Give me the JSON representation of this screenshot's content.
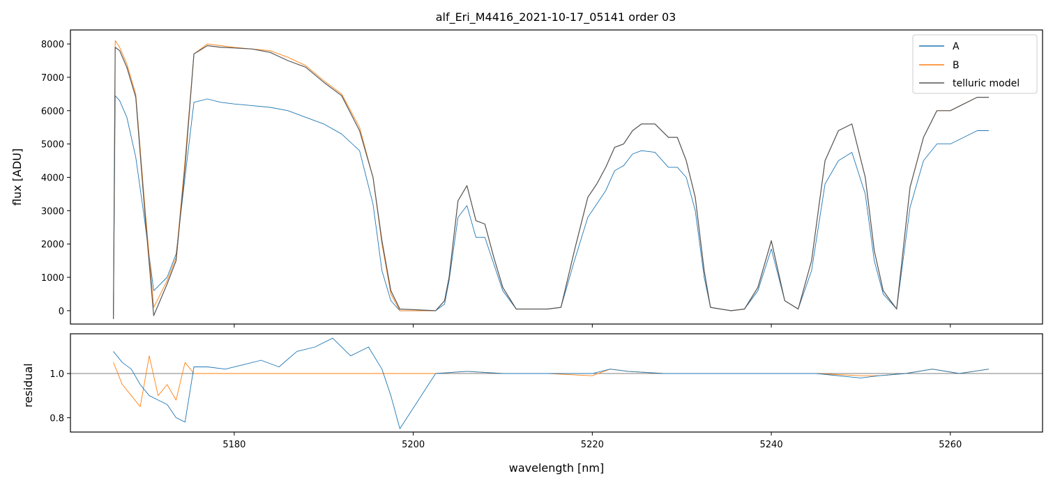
{
  "chart_data": [
    {
      "type": "line",
      "panel": "top",
      "title": "alf_Eri_M4416_2021-10-17_05141  order 03",
      "xlabel": "",
      "ylabel": "flux [ADU]",
      "xlim": [
        5161.7,
        5270.3
      ],
      "ylim": [
        -400,
        8420
      ],
      "yticks": [
        "0",
        "1000",
        "2000",
        "3000",
        "4000",
        "5000",
        "6000",
        "7000",
        "8000"
      ],
      "grid": false,
      "legend": "top-right",
      "colors": {
        "A": "#1f77b4",
        "B": "#ff7f0e",
        "model": "#555555"
      },
      "series": [
        {
          "name": "A",
          "x": [
            5166.5,
            5166.7,
            5167.2,
            5168.0,
            5169.0,
            5170.0,
            5171.0,
            5172.5,
            5173.5,
            5174.5,
            5175.5,
            5177.0,
            5178.5,
            5180.0,
            5182.0,
            5184.0,
            5186.0,
            5188.0,
            5190.0,
            5192.0,
            5194.0,
            5195.5,
            5196.5,
            5197.5,
            5198.5,
            5202.5,
            5203.5,
            5204.0,
            5205.0,
            5206.0,
            5207.0,
            5208.0,
            5209.0,
            5210.0,
            5211.5,
            5213.0,
            5215.0,
            5216.5,
            5218.0,
            5219.5,
            5220.5,
            5221.5,
            5222.5,
            5223.5,
            5224.5,
            5225.5,
            5227.0,
            5228.5,
            5229.5,
            5230.5,
            5231.5,
            5232.5,
            5233.2,
            5235.5,
            5237.0,
            5238.5,
            5240.0,
            5241.5,
            5243.0,
            5244.5,
            5246.0,
            5247.5,
            5249.0,
            5250.5,
            5251.5,
            5252.5,
            5254.0,
            5255.5,
            5257.0,
            5258.5,
            5260.0,
            5261.5,
            5263.0,
            5264.3
          ],
          "y": [
            -250,
            6450,
            6300,
            5800,
            4600,
            2700,
            600,
            1000,
            1700,
            4000,
            6250,
            6350,
            6250,
            6200,
            6150,
            6100,
            6000,
            5800,
            5600,
            5300,
            4800,
            3200,
            1200,
            300,
            0,
            0,
            200,
            900,
            2800,
            3150,
            2200,
            2200,
            1400,
            600,
            50,
            50,
            50,
            100,
            1500,
            2800,
            3200,
            3600,
            4200,
            4350,
            4700,
            4800,
            4750,
            4300,
            4300,
            4000,
            3000,
            1000,
            100,
            0,
            50,
            600,
            1850,
            300,
            50,
            1200,
            3800,
            4500,
            4750,
            3500,
            1500,
            500,
            50,
            3100,
            4500,
            5000,
            5000,
            5200,
            5400,
            5400
          ]
        },
        {
          "name": "B",
          "x": [
            5166.5,
            5166.7,
            5167.2,
            5168.0,
            5169.0,
            5170.0,
            5171.0,
            5172.5,
            5173.5,
            5174.5,
            5175.5,
            5177.0,
            5178.5,
            5180.0,
            5182.0,
            5184.0,
            5186.0,
            5188.0,
            5190.0,
            5192.0,
            5194.0,
            5195.5,
            5196.5,
            5197.5,
            5198.5,
            5202.5,
            5203.5,
            5204.0,
            5205.0,
            5206.0,
            5207.0,
            5208.0,
            5209.0,
            5210.0,
            5211.5,
            5213.0,
            5215.0,
            5216.5,
            5218.0,
            5219.5,
            5220.5,
            5221.5,
            5222.5,
            5223.5,
            5224.5,
            5225.5,
            5227.0,
            5228.5,
            5229.5,
            5230.5,
            5231.5,
            5232.5,
            5233.2,
            5235.5,
            5237.0,
            5238.5,
            5240.0,
            5241.5,
            5243.0,
            5244.5,
            5246.0,
            5247.5,
            5249.0,
            5250.5,
            5251.5,
            5252.5,
            5254.0,
            5255.5,
            5257.0,
            5258.5,
            5260.0,
            5261.5,
            5263.0,
            5264.3
          ],
          "y": [
            -250,
            8100,
            7900,
            7400,
            6500,
            3200,
            100,
            900,
            1600,
            4500,
            7700,
            8000,
            7950,
            7900,
            7850,
            7800,
            7600,
            7350,
            6900,
            6500,
            5500,
            4000,
            2000,
            500,
            0,
            0,
            300,
            1000,
            3300,
            3750,
            2700,
            2600,
            1600,
            700,
            50,
            50,
            50,
            100,
            1800,
            3400,
            3800,
            4300,
            4900,
            5000,
            5400,
            5600,
            5600,
            5200,
            5200,
            4500,
            3400,
            1200,
            100,
            0,
            50,
            700,
            2100,
            300,
            50,
            1500,
            4500,
            5400,
            5600,
            4000,
            1800,
            600,
            50,
            3700,
            5200,
            6000,
            6000,
            6200,
            6400,
            6400
          ]
        },
        {
          "name": "telluric model",
          "x": [
            5166.5,
            5166.7,
            5167.2,
            5168.0,
            5169.0,
            5170.0,
            5171.0,
            5172.5,
            5173.5,
            5174.5,
            5175.5,
            5177.0,
            5178.5,
            5180.0,
            5182.0,
            5184.0,
            5186.0,
            5188.0,
            5190.0,
            5192.0,
            5194.0,
            5195.5,
            5196.5,
            5197.5,
            5198.5,
            5202.5,
            5203.5,
            5204.0,
            5205.0,
            5206.0,
            5207.0,
            5208.0,
            5209.0,
            5210.0,
            5211.5,
            5213.0,
            5215.0,
            5216.5,
            5218.0,
            5219.5,
            5220.5,
            5221.5,
            5222.5,
            5223.5,
            5224.5,
            5225.5,
            5227.0,
            5228.5,
            5229.5,
            5230.5,
            5231.5,
            5232.5,
            5233.2,
            5235.5,
            5237.0,
            5238.5,
            5240.0,
            5241.5,
            5243.0,
            5244.5,
            5246.0,
            5247.5,
            5249.0,
            5250.5,
            5251.5,
            5252.5,
            5254.0,
            5255.5,
            5257.0,
            5258.5,
            5260.0,
            5261.5,
            5263.0,
            5264.3
          ],
          "y": [
            -250,
            7900,
            7800,
            7300,
            6400,
            3000,
            -150,
            800,
            1500,
            4300,
            7700,
            7950,
            7900,
            7880,
            7850,
            7750,
            7500,
            7300,
            6850,
            6450,
            5400,
            4000,
            2100,
            600,
            50,
            0,
            300,
            1000,
            3300,
            3750,
            2700,
            2600,
            1600,
            700,
            50,
            50,
            50,
            100,
            1800,
            3400,
            3800,
            4300,
            4900,
            5000,
            5400,
            5600,
            5600,
            5200,
            5200,
            4500,
            3400,
            1200,
            100,
            0,
            50,
            700,
            2100,
            300,
            50,
            1500,
            4500,
            5400,
            5600,
            4000,
            1800,
            600,
            50,
            3700,
            5200,
            6000,
            6000,
            6200,
            6400,
            6400
          ]
        }
      ]
    },
    {
      "type": "line",
      "panel": "bottom",
      "title": "",
      "xlabel": "wavelength [nm]",
      "ylabel": "residual",
      "xlim": [
        5161.7,
        5270.3
      ],
      "ylim": [
        0.735,
        1.18
      ],
      "xticks": [
        "5180",
        "5200",
        "5220",
        "5240",
        "5260"
      ],
      "yticks": [
        "0.8",
        "1.0"
      ],
      "reference_line": 1.0,
      "grid": false,
      "series": [
        {
          "name": "A",
          "x": [
            5166.5,
            5167.5,
            5168.5,
            5169.5,
            5170.5,
            5171.5,
            5172.5,
            5173.5,
            5174.5,
            5175.5,
            5177.0,
            5179.0,
            5181.0,
            5183.0,
            5185.0,
            5187.0,
            5189.0,
            5191.0,
            5193.0,
            5195.0,
            5196.5,
            5197.5,
            5198.5,
            5202.5,
            5206.0,
            5210.0,
            5215.0,
            5220.0,
            5222.0,
            5224.0,
            5228.0,
            5233.0,
            5235.5,
            5240.0,
            5245.0,
            5250.0,
            5252.0,
            5255.0,
            5258.0,
            5261.0,
            5264.3
          ],
          "y": [
            1.1,
            1.05,
            1.02,
            0.95,
            0.9,
            0.88,
            0.86,
            0.8,
            0.78,
            1.03,
            1.03,
            1.02,
            1.04,
            1.06,
            1.03,
            1.1,
            1.12,
            1.16,
            1.08,
            1.12,
            1.02,
            0.9,
            0.75,
            1.0,
            1.01,
            1.0,
            1.0,
            1.0,
            1.02,
            1.01,
            1.0,
            1.0,
            1.0,
            1.0,
            1.0,
            0.98,
            0.99,
            1.0,
            1.02,
            1.0,
            1.02
          ]
        },
        {
          "name": "B",
          "x": [
            5166.5,
            5167.5,
            5168.5,
            5169.5,
            5170.5,
            5171.5,
            5172.5,
            5173.5,
            5174.5,
            5175.5,
            5177.0,
            5179.0,
            5181.0,
            5183.0,
            5185.0,
            5187.0,
            5189.0,
            5191.0,
            5193.0,
            5195.0,
            5196.5,
            5197.5,
            5198.5,
            5202.5,
            5206.0,
            5210.0,
            5215.0,
            5220.0,
            5222.0,
            5224.0,
            5228.0,
            5233.0,
            5235.5,
            5240.0,
            5245.0,
            5250.0,
            5252.0,
            5255.0,
            5258.0,
            5261.0,
            5264.3
          ],
          "y": [
            1.05,
            0.95,
            0.9,
            0.85,
            1.08,
            0.9,
            0.95,
            0.88,
            1.05,
            1.0,
            1.0,
            1.0,
            1.0,
            1.0,
            1.0,
            1.0,
            1.0,
            1.0,
            1.0,
            1.0,
            1.0,
            1.0,
            1.0,
            1.0,
            1.01,
            1.0,
            1.0,
            0.99,
            1.02,
            1.01,
            1.0,
            1.0,
            1.0,
            1.0,
            1.0,
            0.99,
            0.99,
            1.0,
            1.02,
            1.0,
            1.02
          ]
        }
      ]
    }
  ]
}
